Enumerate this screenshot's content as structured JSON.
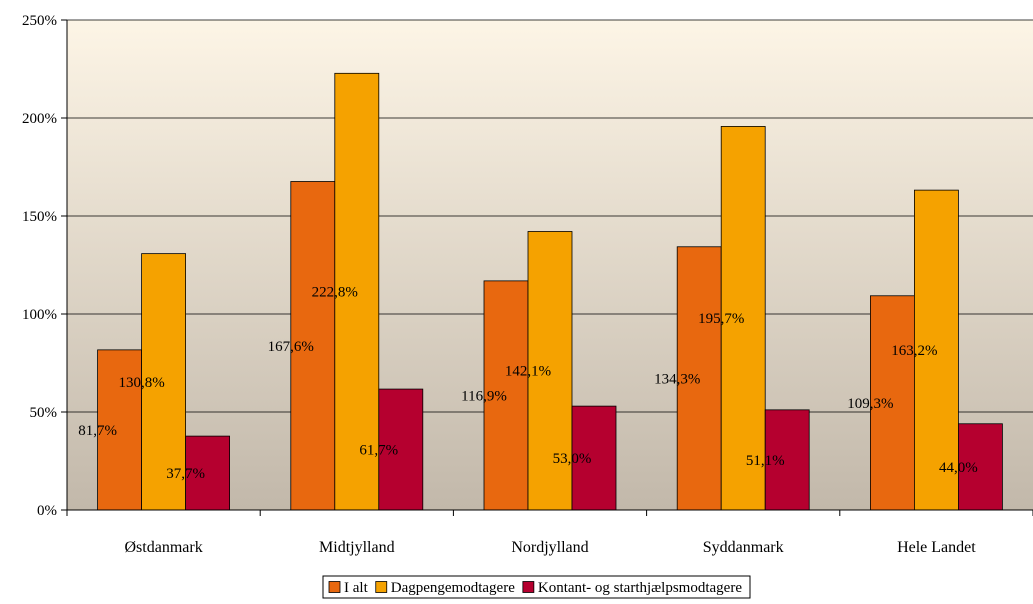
{
  "chart_data": {
    "type": "bar",
    "title": "",
    "xlabel": "",
    "ylabel": "",
    "categories": [
      "Østdanmark",
      "Midtjylland",
      "Nordjylland",
      "Syddanmark",
      "Hele Landet"
    ],
    "series": [
      {
        "name": "I alt",
        "color": "#E8680F",
        "values": [
          81.7,
          167.6,
          116.9,
          134.3,
          109.3
        ],
        "labels": [
          "81,7%",
          "167,6%",
          "116,9%",
          "134,3%",
          "109,3%"
        ]
      },
      {
        "name": "Dagpengemodtagere",
        "color": "#F5A200",
        "values": [
          130.8,
          222.8,
          142.1,
          195.7,
          163.2
        ],
        "labels": [
          "130,8%",
          "222,8%",
          "142,1%",
          "195,7%",
          "163,2%"
        ]
      },
      {
        "name": "Kontant- og starthjælpsmodtagere",
        "color": "#B5002F",
        "values": [
          37.7,
          61.7,
          53.0,
          51.1,
          44.0
        ],
        "labels": [
          "37,7%",
          "61,7%",
          "53,0%",
          "51,1%",
          "44,0%"
        ]
      }
    ],
    "ylim": [
      0,
      250
    ],
    "yticks": [
      0,
      50,
      100,
      150,
      200,
      250
    ],
    "ytick_labels": [
      "0%",
      "50%",
      "100%",
      "150%",
      "200%",
      "250%"
    ],
    "grid": true,
    "legend": "bottom-center",
    "plot_background": {
      "top": "#FDF5E6",
      "bottom": "#C2B8AA"
    }
  }
}
